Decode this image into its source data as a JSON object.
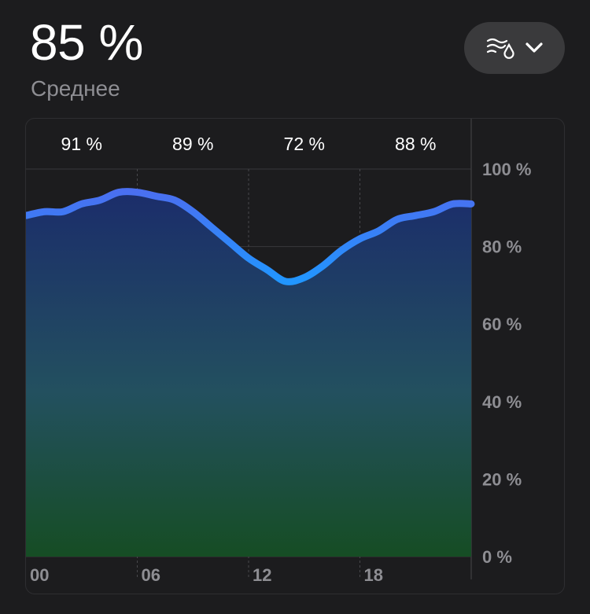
{
  "header": {
    "value": "85 %",
    "subtitle": "Среднее"
  },
  "metric_selector": {
    "icon": "humidity-icon",
    "chevron": "chevron-down-icon"
  },
  "colors": {
    "line_top": "#4a6ff0",
    "line_bottom": "#2196ff",
    "fill_top": "#1b2d6b",
    "fill_mid": "#23505f",
    "fill_bottom": "#164d24"
  },
  "chart_data": {
    "type": "area",
    "x_unit": "hours",
    "xlim": [
      0,
      24
    ],
    "ylim": [
      0,
      100
    ],
    "x_ticks": [
      {
        "value": 0,
        "label": "00"
      },
      {
        "value": 6,
        "label": "06"
      },
      {
        "value": 12,
        "label": "12"
      },
      {
        "value": 18,
        "label": "18"
      }
    ],
    "y_ticks": [
      {
        "value": 100,
        "label": "100 %"
      },
      {
        "value": 80,
        "label": "80 %"
      },
      {
        "value": 60,
        "label": "60 %"
      },
      {
        "value": 40,
        "label": "40 %"
      },
      {
        "value": 20,
        "label": "20 %"
      },
      {
        "value": 0,
        "label": "0 %"
      }
    ],
    "segment_labels": [
      "91 %",
      "89 %",
      "72 %",
      "88 %"
    ],
    "series": [
      {
        "x": [
          0,
          1,
          2,
          3,
          4,
          5,
          6,
          7,
          8,
          9,
          10,
          11,
          12,
          13,
          14,
          15,
          16,
          17,
          18,
          19,
          20,
          21,
          22,
          23,
          24
        ],
        "values": [
          88,
          89,
          89,
          91,
          92,
          94,
          94,
          93,
          92,
          89,
          85,
          81,
          77,
          74,
          71,
          72,
          75,
          79,
          82,
          84,
          87,
          88,
          89,
          91,
          91
        ]
      }
    ]
  }
}
